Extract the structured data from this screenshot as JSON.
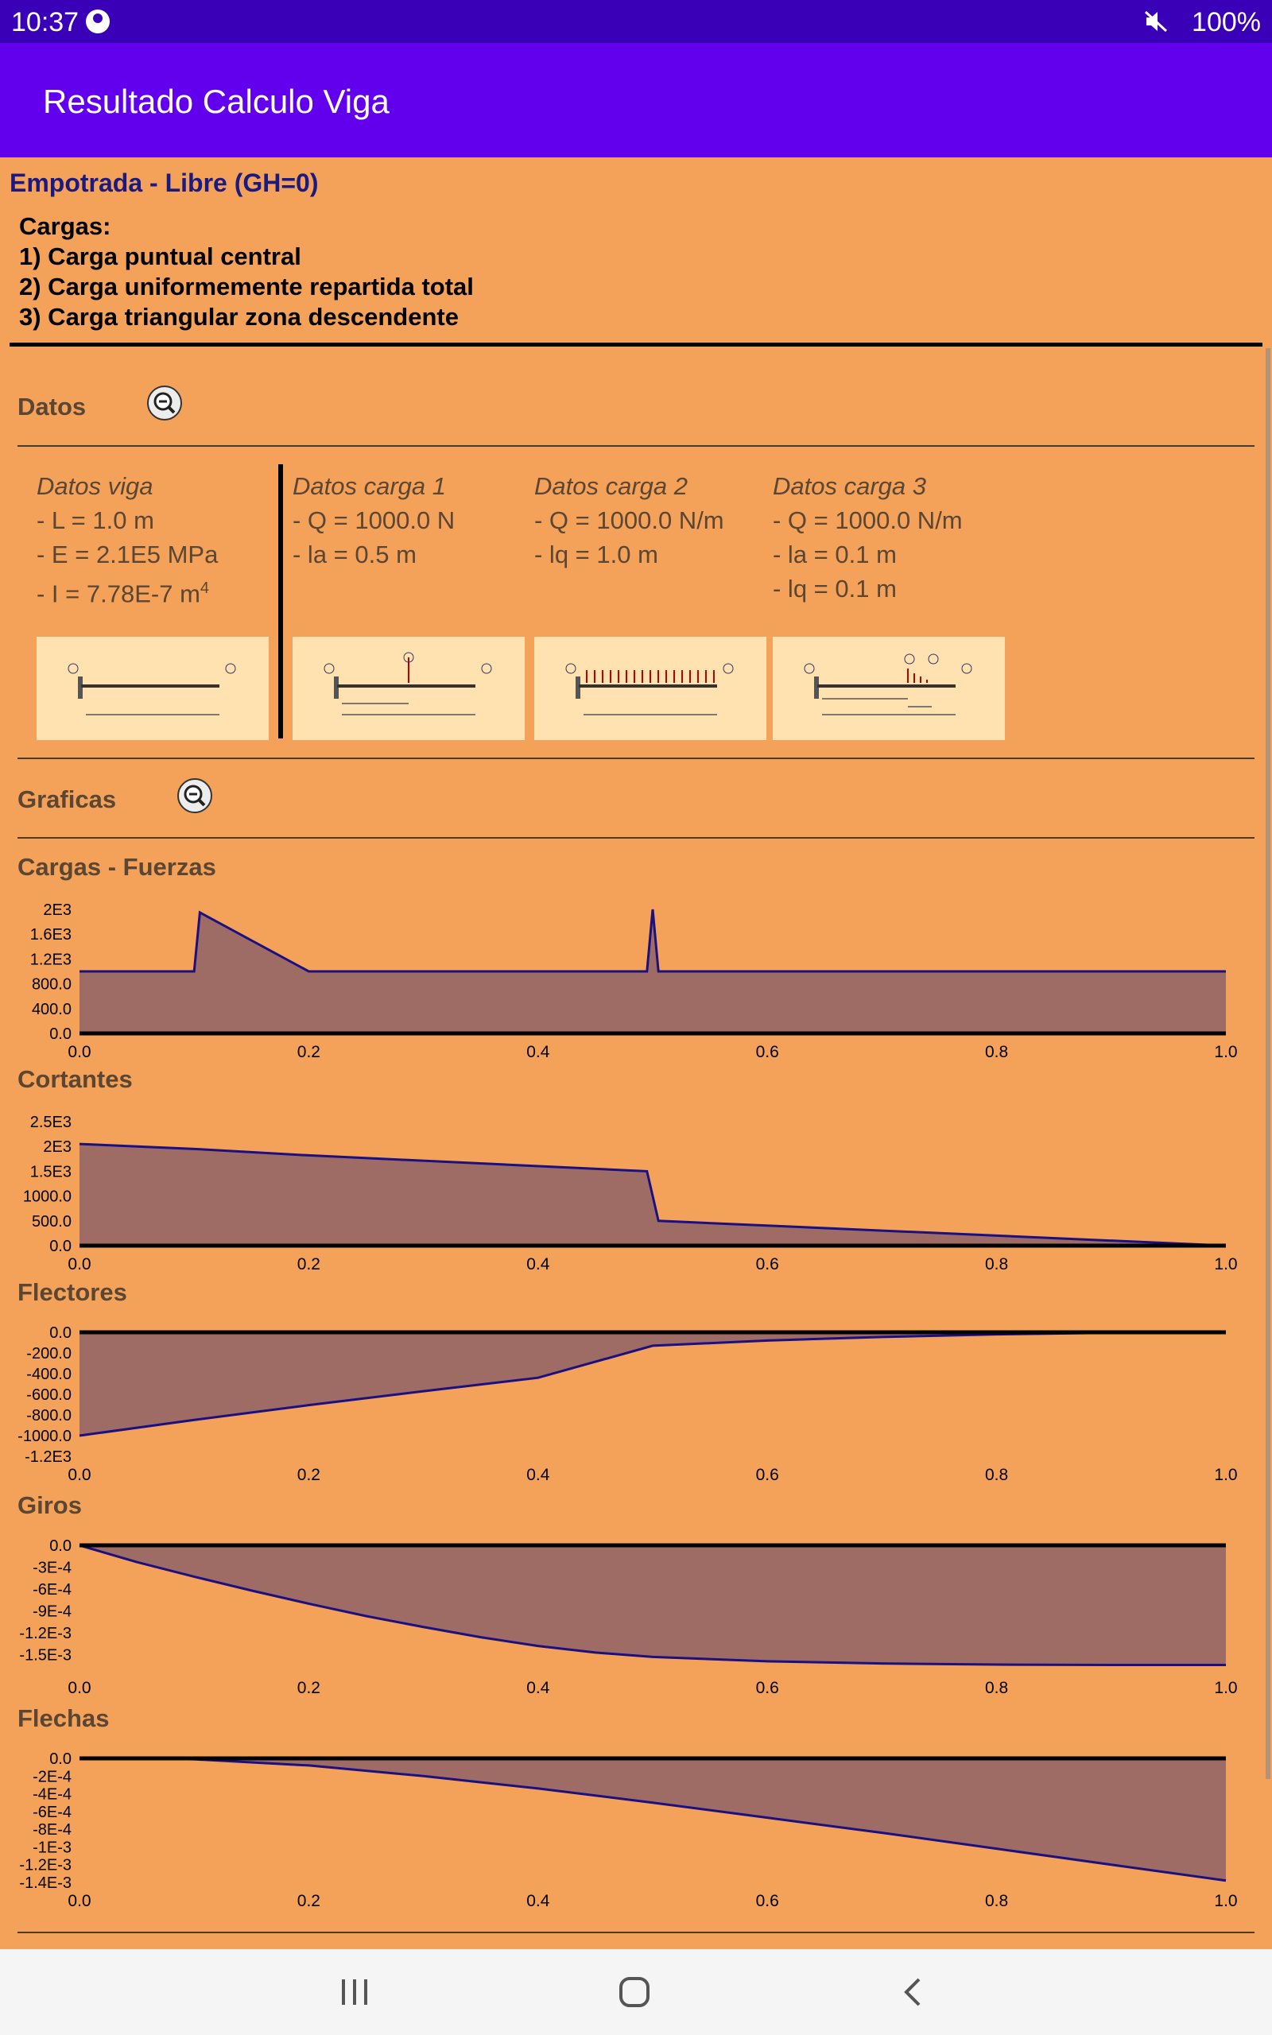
{
  "status": {
    "time": "10:37",
    "battery": "100%"
  },
  "app": {
    "title": "Resultado Calculo Viga"
  },
  "beam_type": "Empotrada - Libre (GH=0)",
  "loads": {
    "title": "Cargas:",
    "items": [
      "1) Carga puntual central",
      "2) Carga uniformemente repartida total",
      "3) Carga triangular zona descendente"
    ]
  },
  "datos": {
    "title": "Datos",
    "viga": {
      "title": "Datos viga",
      "L": "- L = 1.0 m",
      "E": "- E = 2.1E5 MPa",
      "I": "- I = 7.78E-7 m",
      "I_exp": "4"
    },
    "carga1": {
      "title": "Datos carga 1",
      "Q": "- Q = 1000.0 N",
      "la": "- la = 0.5 m"
    },
    "carga2": {
      "title": "Datos carga 2",
      "Q": "- Q = 1000.0 N/m",
      "lq": "- lq = 1.0 m"
    },
    "carga3": {
      "title": "Datos carga 3",
      "Q": "- Q = 1000.0 N/m",
      "la": "- la = 0.1 m",
      "lq": "- lq = 0.1 m"
    }
  },
  "graficas": {
    "title": "Graficas"
  },
  "colors": {
    "fill": "#9E6B65",
    "line": "#1A1080",
    "bg": "#F4A15A",
    "appbar": "#6200EE"
  },
  "chart_data": [
    {
      "type": "area",
      "title": "Cargas - Fuerzas",
      "xlim": [
        0,
        1
      ],
      "ylim": [
        0,
        2000
      ],
      "x_ticks": [
        "0.0",
        "0.2",
        "0.4",
        "0.6",
        "0.8",
        "1.0"
      ],
      "y_ticks": [
        "2E3",
        "1.6E3",
        "1.2E3",
        "800.0",
        "400.0",
        "0.0"
      ],
      "y_tick_values": [
        2000,
        1600,
        1200,
        800,
        400,
        0
      ],
      "series": [
        {
          "x": [
            0,
            0.1,
            0.105,
            0.2,
            0.495,
            0.5,
            0.505,
            1.0
          ],
          "y": [
            1000,
            1000,
            1950,
            1000,
            1000,
            2000,
            1000,
            1000
          ]
        }
      ]
    },
    {
      "type": "area",
      "title": "Cortantes",
      "xlim": [
        0,
        1
      ],
      "ylim": [
        0,
        2500
      ],
      "x_ticks": [
        "0.0",
        "0.2",
        "0.4",
        "0.6",
        "0.8",
        "1.0"
      ],
      "y_ticks": [
        "2.5E3",
        "2E3",
        "1.5E3",
        "1000.0",
        "500.0",
        "0.0"
      ],
      "y_tick_values": [
        2500,
        2000,
        1500,
        1000,
        500,
        0
      ],
      "series": [
        {
          "x": [
            0,
            0.1,
            0.2,
            0.495,
            0.505,
            1.0
          ],
          "y": [
            2050,
            1950,
            1820,
            1500,
            500,
            0
          ]
        }
      ]
    },
    {
      "type": "area",
      "title": "Flectores",
      "xlim": [
        0,
        1
      ],
      "ylim": [
        -1200,
        0
      ],
      "x_ticks": [
        "0.0",
        "0.2",
        "0.4",
        "0.6",
        "0.8",
        "1.0"
      ],
      "y_ticks": [
        "0.0",
        "-200.0",
        "-400.0",
        "-600.0",
        "-800.0",
        "-1000.0",
        "-1.2E3"
      ],
      "y_tick_values": [
        0,
        -200,
        -400,
        -600,
        -800,
        -1000,
        -1200
      ],
      "series": [
        {
          "x": [
            0,
            0.1,
            0.2,
            0.3,
            0.4,
            0.5,
            0.6,
            0.7,
            0.8,
            0.9,
            1.0
          ],
          "y": [
            -1000,
            -848,
            -705,
            -570,
            -440,
            -130,
            -80,
            -45,
            -20,
            -5,
            0
          ]
        }
      ]
    },
    {
      "type": "area",
      "title": "Giros",
      "xlim": [
        0,
        1
      ],
      "ylim": [
        -0.0017,
        0
      ],
      "x_ticks": [
        "0.0",
        "0.2",
        "0.4",
        "0.6",
        "0.8",
        "1.0"
      ],
      "y_ticks": [
        "0.0",
        "-3E-4",
        "-6E-4",
        "-9E-4",
        "-1.2E-3",
        "-1.5E-3"
      ],
      "y_tick_values": [
        0,
        -0.0003,
        -0.0006,
        -0.0009,
        -0.0012,
        -0.0015
      ],
      "series": [
        {
          "x": [
            0,
            0.05,
            0.1,
            0.15,
            0.2,
            0.25,
            0.3,
            0.35,
            0.4,
            0.45,
            0.5,
            0.6,
            0.7,
            0.8,
            0.9,
            1.0
          ],
          "y": [
            0,
            -0.00023,
            -0.00043,
            -0.00062,
            -0.0008,
            -0.00097,
            -0.00112,
            -0.00126,
            -0.00138,
            -0.00147,
            -0.00153,
            -0.00159,
            -0.00162,
            -0.001635,
            -0.00164,
            -0.00164
          ]
        }
      ]
    },
    {
      "type": "area",
      "title": "Flechas",
      "xlim": [
        0,
        1
      ],
      "ylim": [
        -0.0014,
        0
      ],
      "x_ticks": [
        "0.0",
        "0.2",
        "0.4",
        "0.6",
        "0.8",
        "1.0"
      ],
      "y_ticks": [
        "0.0",
        "-2E-4",
        "-4E-4",
        "-6E-4",
        "-8E-4",
        "-1E-3",
        "-1.2E-3",
        "-1.4E-3"
      ],
      "y_tick_values": [
        0,
        -0.0002,
        -0.0004,
        -0.0006,
        -0.0008,
        -0.001,
        -0.0012,
        -0.0014
      ],
      "series": [
        {
          "x": [
            0,
            0.05,
            0.1,
            0.2,
            0.3,
            0.4,
            0.5,
            0.6,
            0.7,
            0.8,
            0.9,
            1.0
          ],
          "y": [
            0,
            0,
            -1e-05,
            -8e-05,
            -0.0002,
            -0.00034,
            -0.0005,
            -0.00067,
            -0.00084,
            -0.00102,
            -0.0012,
            -0.00138
          ]
        }
      ]
    }
  ]
}
